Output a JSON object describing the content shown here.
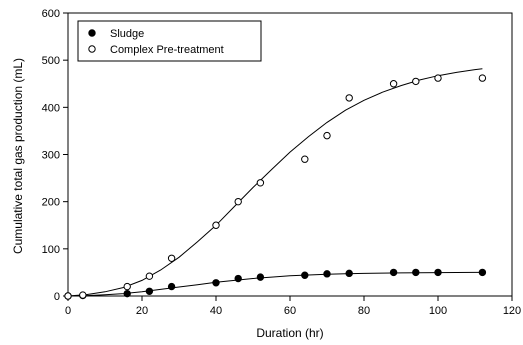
{
  "chart_data": {
    "type": "scatter",
    "xlabel": "Duration (hr)",
    "ylabel": "Cumulative total gas production (mL)",
    "xlim": [
      0,
      120
    ],
    "ylim": [
      0,
      600
    ],
    "xticks": [
      0,
      20,
      40,
      60,
      80,
      100,
      120
    ],
    "yticks": [
      0,
      100,
      200,
      300,
      400,
      500,
      600
    ],
    "grid": false,
    "legend_position": "top-left",
    "series": [
      {
        "name": "Sludge",
        "marker": "filled-circle",
        "color": "#000000",
        "x": [
          0,
          4,
          16,
          22,
          28,
          40,
          46,
          52,
          64,
          70,
          76,
          88,
          94,
          100,
          112
        ],
        "y": [
          0,
          1,
          5,
          10,
          20,
          28,
          37,
          40,
          44,
          47,
          48,
          50,
          50,
          50,
          50
        ],
        "fit_curve": {
          "x": [
            0,
            5,
            10,
            15,
            20,
            25,
            30,
            35,
            40,
            45,
            50,
            55,
            60,
            65,
            70,
            75,
            80,
            85,
            90,
            95,
            100,
            105,
            110,
            112
          ],
          "y": [
            0,
            0.8,
            2.5,
            5,
            9,
            14,
            19,
            24,
            29,
            33,
            37,
            40,
            43,
            44.5,
            46,
            47,
            48,
            48.5,
            49,
            49.3,
            49.6,
            49.8,
            50,
            50
          ]
        }
      },
      {
        "name": "Complex Pre-treatment",
        "marker": "open-circle",
        "color": "#000000",
        "x": [
          0,
          4,
          16,
          22,
          28,
          40,
          46,
          52,
          64,
          70,
          76,
          88,
          94,
          100,
          112
        ],
        "y": [
          0,
          2,
          20,
          42,
          80,
          150,
          200,
          240,
          290,
          340,
          420,
          450,
          455,
          462,
          462
        ],
        "fit_curve": {
          "x": [
            0,
            5,
            10,
            15,
            20,
            25,
            30,
            35,
            40,
            45,
            50,
            55,
            60,
            65,
            70,
            75,
            80,
            85,
            90,
            95,
            100,
            105,
            110,
            112
          ],
          "y": [
            0,
            3,
            9,
            18,
            33,
            55,
            82,
            115,
            150,
            190,
            230,
            268,
            305,
            338,
            368,
            394,
            415,
            432,
            446,
            458,
            467,
            474,
            480,
            482
          ]
        }
      }
    ]
  }
}
